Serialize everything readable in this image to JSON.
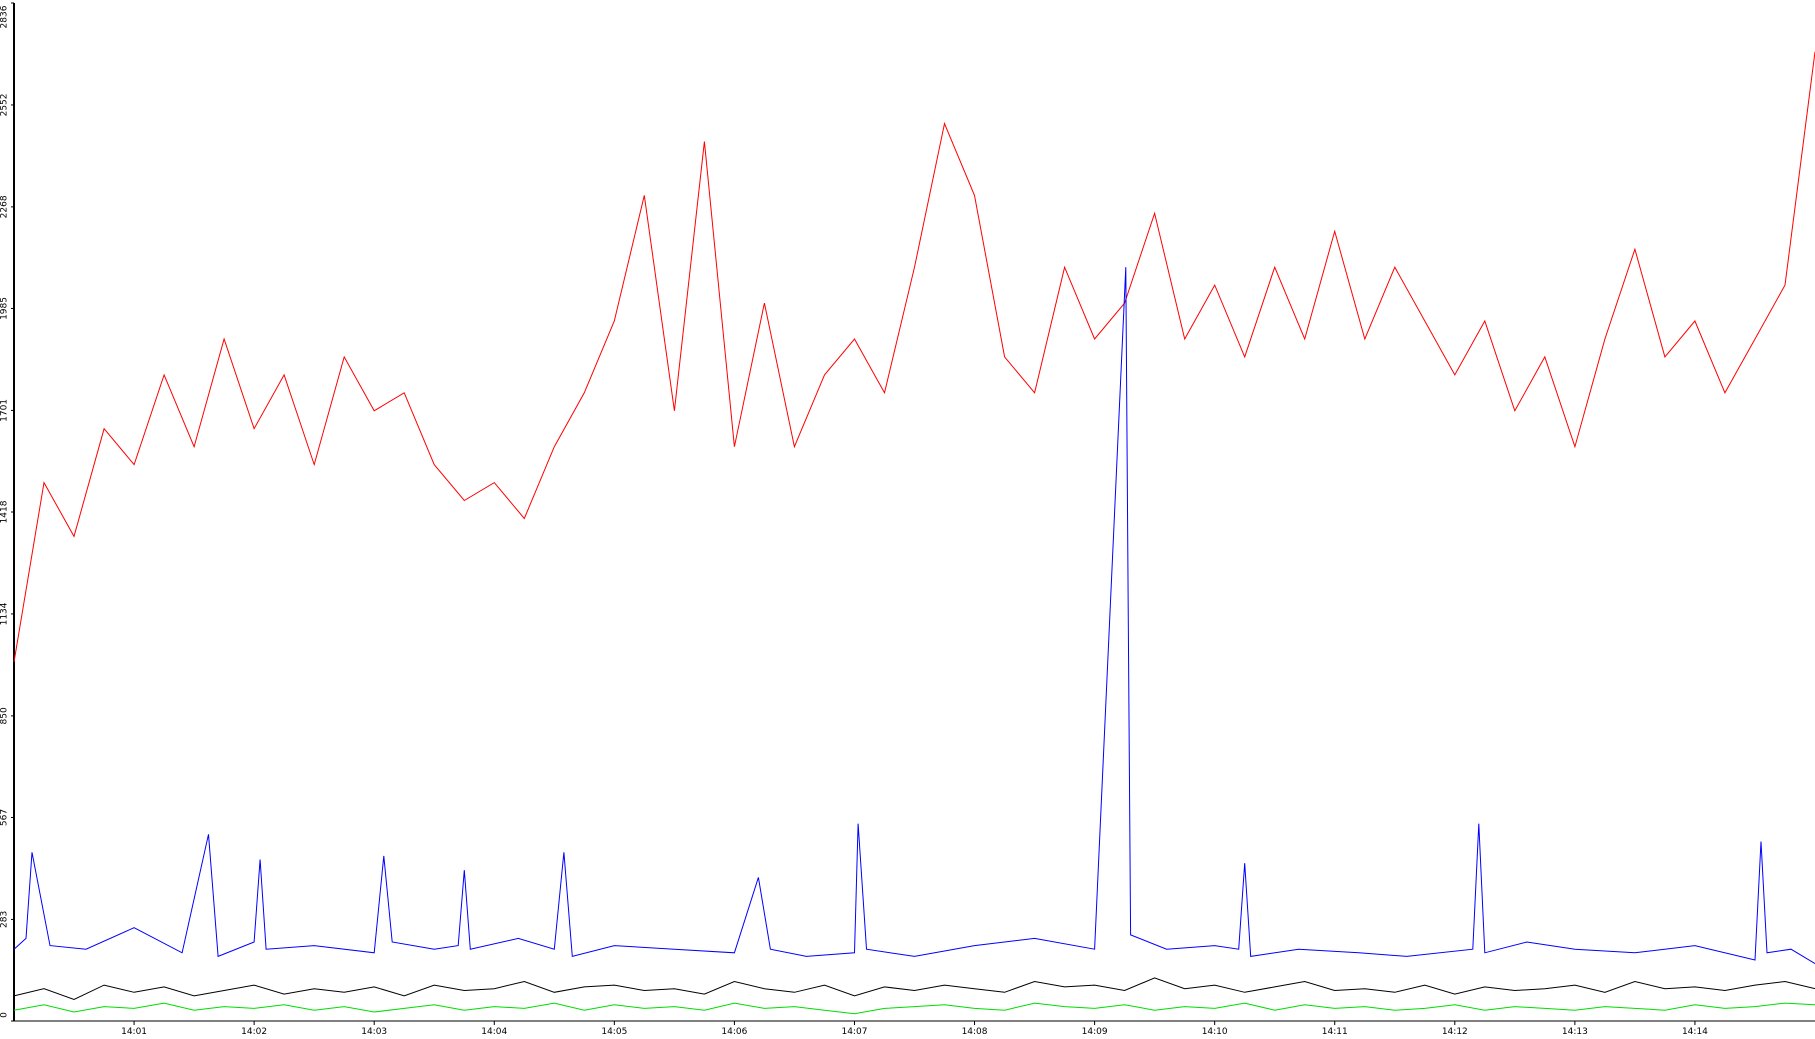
{
  "chart_data": {
    "type": "line",
    "x": [
      0,
      0.25,
      0.5,
      0.75,
      1,
      1.25,
      1.5,
      1.75,
      2,
      2.25,
      2.5,
      2.75,
      3,
      3.25,
      3.5,
      3.75,
      4,
      4.25,
      4.5,
      4.75,
      5,
      5.25,
      5.5,
      5.75,
      6,
      6.25,
      6.5,
      6.75,
      7,
      7.25,
      7.5,
      7.75,
      8,
      8.25,
      8.5,
      8.75,
      9,
      9.25,
      9.5,
      9.75,
      10,
      10.25,
      10.5,
      10.75,
      11,
      11.25,
      11.5,
      11.75,
      12,
      12.25,
      12.5,
      12.75,
      13,
      13.25,
      13.5,
      13.75,
      14,
      14.25,
      14.5,
      14.75,
      15
    ],
    "xlim": [
      0,
      15
    ],
    "xticks": [
      {
        "value": 1,
        "label": "14:01"
      },
      {
        "value": 2,
        "label": "14:02"
      },
      {
        "value": 3,
        "label": "14:03"
      },
      {
        "value": 4,
        "label": "14:04"
      },
      {
        "value": 5,
        "label": "14:05"
      },
      {
        "value": 6,
        "label": "14:06"
      },
      {
        "value": 7,
        "label": "14:07"
      },
      {
        "value": 8,
        "label": "14:08"
      },
      {
        "value": 9,
        "label": "14:09"
      },
      {
        "value": 10,
        "label": "14:10"
      },
      {
        "value": 11,
        "label": "14:11"
      },
      {
        "value": 12,
        "label": "14:12"
      },
      {
        "value": 13,
        "label": "14:13"
      },
      {
        "value": 14,
        "label": "14:14"
      }
    ],
    "ylim": [
      0,
      2836
    ],
    "yticks": [
      0,
      283,
      567,
      850,
      1134,
      1418,
      1701,
      1985,
      2268,
      2552,
      2836
    ],
    "series": [
      {
        "color": "#ff0000",
        "values": [
          1000,
          1500,
          1350,
          1650,
          1550,
          1800,
          1600,
          1900,
          1650,
          1800,
          1550,
          1850,
          1700,
          1750,
          1550,
          1450,
          1500,
          1400,
          1600,
          1750,
          1950,
          2300,
          1700,
          2450,
          1600,
          2000,
          1600,
          1800,
          1900,
          1750,
          2100,
          2500,
          2300,
          1850,
          1750,
          2100,
          1900,
          2000,
          2250,
          1900,
          2050,
          1850,
          2100,
          1900,
          2200,
          1900,
          2100,
          1950,
          1800,
          1950,
          1700,
          1850,
          1600,
          1900,
          2150,
          1850,
          1950,
          1750,
          1900,
          2050,
          2700
        ]
      },
      {
        "color": "#0000ff",
        "x": [
          0,
          0.1,
          0.15,
          0.3,
          0.6,
          1.0,
          1.4,
          1.62,
          1.7,
          2.0,
          2.05,
          2.1,
          2.5,
          3.0,
          3.08,
          3.15,
          3.5,
          3.7,
          3.75,
          3.8,
          4.2,
          4.5,
          4.58,
          4.65,
          5.0,
          5.5,
          6.0,
          6.2,
          6.3,
          6.6,
          7.0,
          7.03,
          7.1,
          7.5,
          8.0,
          8.5,
          9.0,
          9.26,
          9.28,
          9.3,
          9.6,
          10.0,
          10.2,
          10.25,
          10.3,
          10.7,
          11.2,
          11.6,
          12.15,
          12.2,
          12.25,
          12.6,
          13.0,
          13.5,
          14.0,
          14.5,
          14.55,
          14.6,
          14.8,
          15.0
        ],
        "values": [
          200,
          230,
          470,
          210,
          200,
          260,
          190,
          520,
          180,
          220,
          450,
          200,
          210,
          190,
          460,
          220,
          200,
          210,
          420,
          200,
          230,
          200,
          470,
          180,
          210,
          200,
          190,
          400,
          200,
          180,
          190,
          550,
          200,
          180,
          210,
          230,
          200,
          2100,
          1150,
          240,
          200,
          210,
          200,
          440,
          180,
          200,
          190,
          180,
          200,
          550,
          190,
          220,
          200,
          190,
          210,
          170,
          500,
          190,
          200,
          160
        ]
      },
      {
        "color": "#000000",
        "values": [
          70,
          90,
          60,
          100,
          80,
          95,
          70,
          85,
          100,
          75,
          90,
          80,
          95,
          70,
          100,
          85,
          90,
          110,
          80,
          95,
          100,
          85,
          90,
          75,
          110,
          90,
          80,
          100,
          70,
          95,
          85,
          100,
          90,
          80,
          110,
          95,
          100,
          85,
          120,
          90,
          100,
          80,
          95,
          110,
          85,
          90,
          80,
          100,
          75,
          95,
          85,
          90,
          100,
          80,
          110,
          90,
          95,
          85,
          100,
          110,
          90
        ]
      },
      {
        "color": "#00dd00",
        "values": [
          30,
          45,
          25,
          40,
          35,
          50,
          30,
          40,
          35,
          45,
          30,
          40,
          25,
          35,
          45,
          30,
          40,
          35,
          50,
          30,
          45,
          35,
          40,
          30,
          50,
          35,
          40,
          30,
          20,
          35,
          40,
          45,
          35,
          30,
          50,
          40,
          35,
          45,
          30,
          40,
          35,
          50,
          30,
          45,
          35,
          40,
          30,
          35,
          45,
          30,
          40,
          35,
          30,
          40,
          35,
          30,
          45,
          35,
          40,
          50,
          45
        ]
      }
    ]
  }
}
